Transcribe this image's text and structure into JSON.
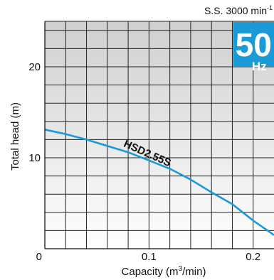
{
  "chart_data": {
    "type": "line",
    "speed_prefix": "S.S. 3000 min",
    "speed_sup": "-1",
    "badge": {
      "value": "50",
      "unit": "Hz",
      "color": "#1a9ad6"
    },
    "xlabel": {
      "prefix": "Capacity (m",
      "sup": "3",
      "suffix": "/min)"
    },
    "ylabel": "Total head (m)",
    "xlim": [
      0,
      0.22
    ],
    "ylim": [
      0,
      25
    ],
    "x_ticks": [
      {
        "value": 0,
        "label": "0"
      },
      {
        "value": 0.1,
        "label": "0.1"
      },
      {
        "value": 0.2,
        "label": "0.2"
      }
    ],
    "y_ticks": [
      {
        "value": 10,
        "label": "10"
      },
      {
        "value": 20,
        "label": "20"
      }
    ],
    "grid": true,
    "grid_step_x": 0.02,
    "grid_step_y": 2,
    "series": [
      {
        "name": "HSD2.55S",
        "color": "#1a9ad6",
        "x": [
          0,
          0.02,
          0.04,
          0.06,
          0.08,
          0.1,
          0.12,
          0.14,
          0.16,
          0.18,
          0.2,
          0.22
        ],
        "y": [
          13.1,
          12.6,
          12.0,
          11.3,
          10.6,
          9.7,
          8.8,
          7.6,
          6.2,
          4.9,
          3.1,
          1.5
        ]
      }
    ]
  }
}
